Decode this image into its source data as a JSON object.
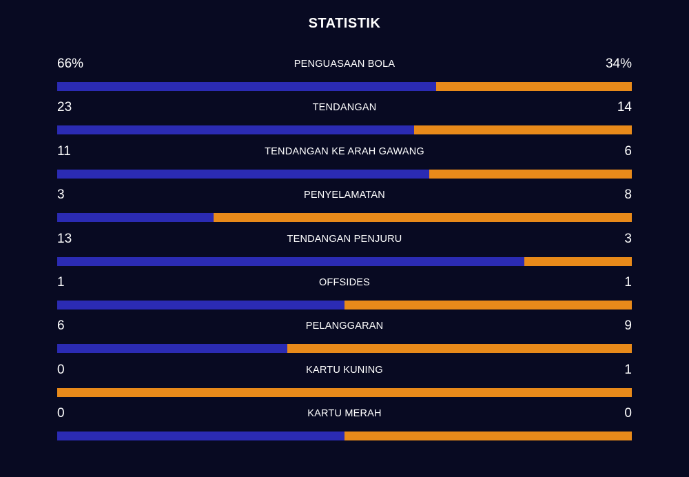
{
  "title": "STATISTIK",
  "colors": {
    "background": "#080a22",
    "home": "#2b2bb3",
    "away": "#e88a1a"
  },
  "stats": [
    {
      "label": "PENGUASAAN BOLA",
      "home": "66%",
      "away": "34%",
      "home_share": 0.66
    },
    {
      "label": "TENDANGAN",
      "home": "23",
      "away": "14",
      "home_share": 0.6216
    },
    {
      "label": "TENDANGAN KE ARAH GAWANG",
      "home": "11",
      "away": "6",
      "home_share": 0.6471
    },
    {
      "label": "PENYELAMATAN",
      "home": "3",
      "away": "8",
      "home_share": 0.2727
    },
    {
      "label": "TENDANGAN PENJURU",
      "home": "13",
      "away": "3",
      "home_share": 0.8125
    },
    {
      "label": "OFFSIDES",
      "home": "1",
      "away": "1",
      "home_share": 0.5
    },
    {
      "label": "PELANGGARAN",
      "home": "6",
      "away": "9",
      "home_share": 0.4
    },
    {
      "label": "KARTU KUNING",
      "home": "0",
      "away": "1",
      "home_share": 0.0
    },
    {
      "label": "KARTU MERAH",
      "home": "0",
      "away": "0",
      "home_share": 0.5
    }
  ]
}
